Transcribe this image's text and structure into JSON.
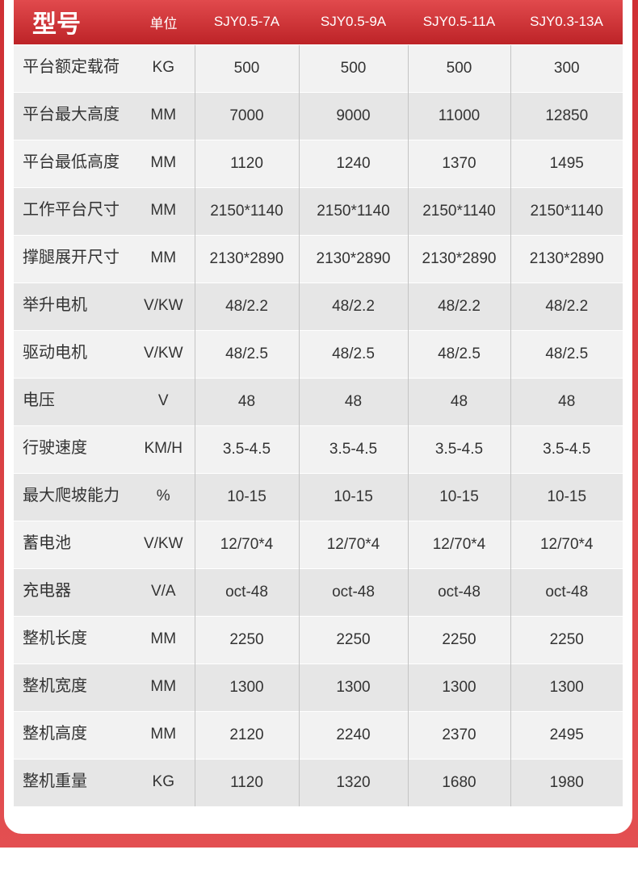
{
  "header": {
    "title": "型号",
    "unit": "单位",
    "models": [
      "SJY0.5-7A",
      "SJY0.5-9A",
      "SJY0.5-11A",
      "SJY0.3-13A"
    ]
  },
  "rows": [
    {
      "name": "平台额定载荷",
      "unit": "KG",
      "values": [
        "500",
        "500",
        "500",
        "300"
      ]
    },
    {
      "name": "平台最大高度",
      "unit": "MM",
      "values": [
        "7000",
        "9000",
        "11000",
        "12850"
      ]
    },
    {
      "name": "平台最低高度",
      "unit": "MM",
      "values": [
        "1120",
        "1240",
        "1370",
        "1495"
      ]
    },
    {
      "name": "工作平台尺寸",
      "unit": "MM",
      "values": [
        "2150*1140",
        "2150*1140",
        "2150*1140",
        "2150*1140"
      ]
    },
    {
      "name": "撑腿展开尺寸",
      "unit": "MM",
      "values": [
        "2130*2890",
        "2130*2890",
        "2130*2890",
        "2130*2890"
      ]
    },
    {
      "name": "举升电机",
      "unit": "V/KW",
      "values": [
        "48/2.2",
        "48/2.2",
        "48/2.2",
        "48/2.2"
      ]
    },
    {
      "name": "驱动电机",
      "unit": "V/KW",
      "values": [
        "48/2.5",
        "48/2.5",
        "48/2.5",
        "48/2.5"
      ]
    },
    {
      "name": "电压",
      "unit": "V",
      "values": [
        "48",
        "48",
        "48",
        "48"
      ]
    },
    {
      "name": "行驶速度",
      "unit": "KM/H",
      "values": [
        "3.5-4.5",
        "3.5-4.5",
        "3.5-4.5",
        "3.5-4.5"
      ]
    },
    {
      "name": "最大爬坡能力",
      "unit": "%",
      "values": [
        "10-15",
        "10-15",
        "10-15",
        "10-15"
      ]
    },
    {
      "name": "蓄电池",
      "unit": "V/KW",
      "values": [
        "12/70*4",
        "12/70*4",
        "12/70*4",
        "12/70*4"
      ]
    },
    {
      "name": "充电器",
      "unit": "V/A",
      "values": [
        "oct-48",
        "oct-48",
        "oct-48",
        "oct-48"
      ]
    },
    {
      "name": "整机长度",
      "unit": "MM",
      "values": [
        "2250",
        "2250",
        "2250",
        "2250"
      ]
    },
    {
      "name": "整机宽度",
      "unit": "MM",
      "values": [
        "1300",
        "1300",
        "1300",
        "1300"
      ]
    },
    {
      "name": "整机高度",
      "unit": "MM",
      "values": [
        "2120",
        "2240",
        "2370",
        "2495"
      ]
    },
    {
      "name": "整机重量",
      "unit": "KG",
      "values": [
        "1120",
        "1320",
        "1680",
        "1980"
      ]
    }
  ],
  "colors": {
    "accent": "#c8282c",
    "header_top": "#e14a4d",
    "header_bottom": "#bd2327",
    "row_light": "#f2f2f2",
    "row_dark": "#e6e6e6"
  }
}
